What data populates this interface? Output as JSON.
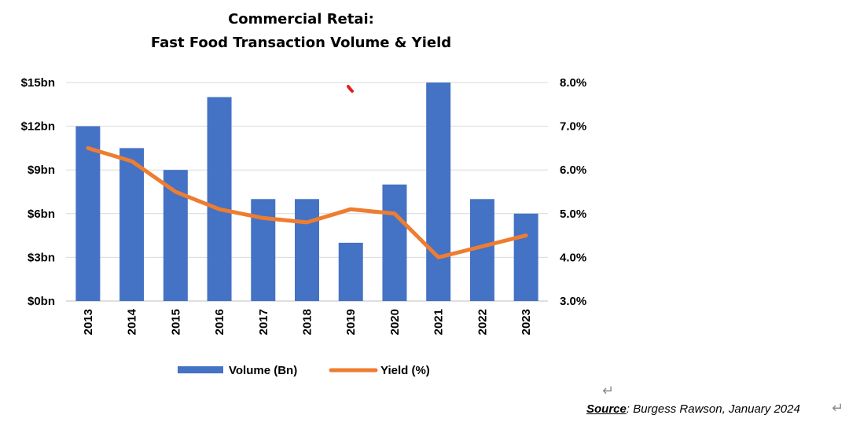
{
  "chart_data": {
    "type": "bar",
    "title_lines": [
      "Commercial Retai:",
      "Fast Food Transaction Volume & Yield"
    ],
    "categories": [
      "2013",
      "2014",
      "2015",
      "2016",
      "2017",
      "2018",
      "2019",
      "2020",
      "2021",
      "2022",
      "2023"
    ],
    "series": [
      {
        "name": "Volume (Bn)",
        "type": "bar",
        "axis": "left",
        "color": "#4472c4",
        "values": [
          12,
          10.5,
          9,
          14,
          7,
          7,
          4,
          8,
          15,
          7,
          6
        ]
      },
      {
        "name": "Yield (%)",
        "type": "line",
        "axis": "right",
        "color": "#ed7d31",
        "values": [
          6.5,
          6.2,
          5.5,
          5.1,
          4.9,
          4.8,
          5.1,
          5.0,
          4.0,
          4.25,
          4.5
        ]
      }
    ],
    "y_left": {
      "ylim": [
        0,
        15
      ],
      "ticks": [
        0,
        3,
        6,
        9,
        12,
        15
      ],
      "tick_labels": [
        "$0bn",
        "$3bn",
        "$6bn",
        "$9bn",
        "$12bn",
        "$15bn"
      ]
    },
    "y_right": {
      "ylim": [
        3.0,
        8.0
      ],
      "ticks": [
        3,
        4,
        5,
        6,
        7,
        8
      ],
      "tick_labels": [
        "3.0%",
        "4.0%",
        "5.0%",
        "6.0%",
        "7.0%",
        "8.0%"
      ]
    },
    "grid": true,
    "legend": "bottom",
    "legend_labels": [
      "Volume (Bn)",
      "Yield (%)"
    ],
    "annotation_mark_color": "#e02020"
  },
  "source": {
    "key": "Source",
    "text": ": Burgess Rawson, January 2024"
  },
  "marks": {
    "paragraph_return": "↵"
  }
}
